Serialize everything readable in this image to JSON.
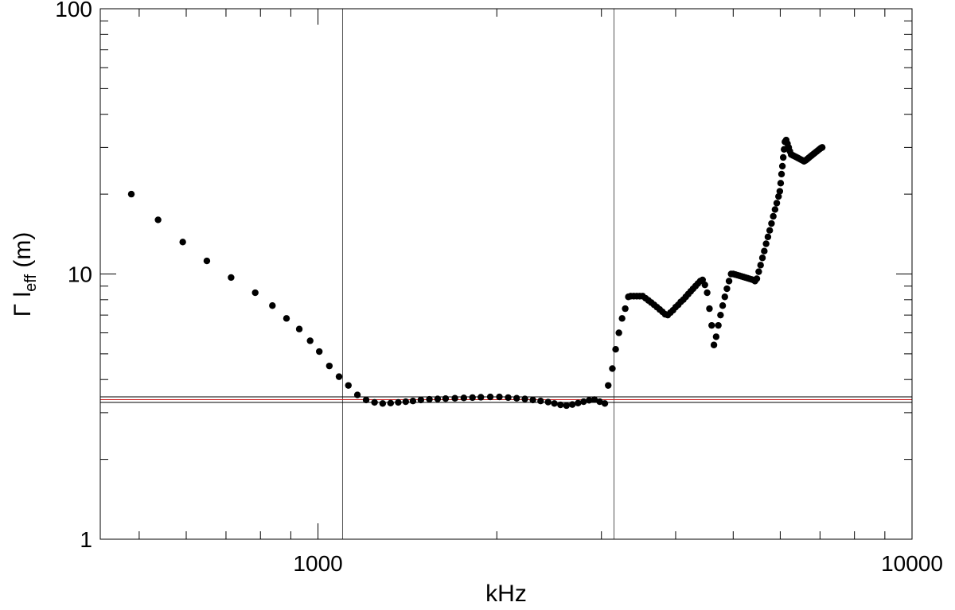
{
  "chart_data": {
    "type": "scatter",
    "title": "",
    "xlabel": "kHz",
    "ylabel": {
      "main": "Γ l",
      "sub": "eff",
      "unit": " (m)"
    },
    "x_scale": "log",
    "y_scale": "log",
    "xlim": [
      430,
      10000
    ],
    "ylim": [
      1,
      100
    ],
    "x_tick_labels": [
      {
        "value": 1000,
        "label": "1000"
      },
      {
        "value": 10000,
        "label": "10000"
      }
    ],
    "y_tick_labels": [
      {
        "value": 1,
        "label": "1"
      },
      {
        "value": 10,
        "label": "10"
      },
      {
        "value": 100,
        "label": "100"
      }
    ],
    "vertical_lines": [
      1100,
      3150
    ],
    "horizontal_lines": [
      {
        "y": 3.28,
        "color": "#000000"
      },
      {
        "y": 3.36,
        "color": "#cc2222"
      },
      {
        "y": 3.44,
        "color": "#000000"
      }
    ],
    "marker_color": "#000000",
    "series": [
      {
        "points": [
          [
            485,
            20.0
          ],
          [
            538,
            16.0
          ],
          [
            592,
            13.2
          ],
          [
            650,
            11.2
          ],
          [
            714,
            9.7
          ],
          [
            784,
            8.5
          ],
          [
            838,
            7.6
          ],
          [
            885,
            6.8
          ],
          [
            930,
            6.2
          ],
          [
            970,
            5.6
          ],
          [
            1005,
            5.1
          ],
          [
            1045,
            4.5
          ],
          [
            1085,
            4.1
          ],
          [
            1125,
            3.8
          ],
          [
            1165,
            3.5
          ],
          [
            1205,
            3.35
          ],
          [
            1245,
            3.28
          ],
          [
            1285,
            3.25
          ],
          [
            1325,
            3.26
          ],
          [
            1365,
            3.28
          ],
          [
            1405,
            3.3
          ],
          [
            1445,
            3.32
          ],
          [
            1490,
            3.35
          ],
          [
            1540,
            3.37
          ],
          [
            1590,
            3.38
          ],
          [
            1640,
            3.39
          ],
          [
            1700,
            3.4
          ],
          [
            1760,
            3.41
          ],
          [
            1820,
            3.42
          ],
          [
            1880,
            3.43
          ],
          [
            1950,
            3.44
          ],
          [
            2020,
            3.44
          ],
          [
            2090,
            3.42
          ],
          [
            2160,
            3.4
          ],
          [
            2230,
            3.38
          ],
          [
            2300,
            3.35
          ],
          [
            2370,
            3.32
          ],
          [
            2440,
            3.29
          ],
          [
            2500,
            3.25
          ],
          [
            2560,
            3.21
          ],
          [
            2620,
            3.19
          ],
          [
            2680,
            3.22
          ],
          [
            2740,
            3.26
          ],
          [
            2800,
            3.3
          ],
          [
            2860,
            3.34
          ],
          [
            2920,
            3.36
          ],
          [
            2980,
            3.3
          ],
          [
            3040,
            3.25
          ],
          [
            3080,
            3.8
          ],
          [
            3130,
            4.4
          ],
          [
            3170,
            5.2
          ],
          [
            3210,
            6.0
          ],
          [
            3250,
            6.8
          ],
          [
            3290,
            7.4
          ],
          [
            3330,
            8.2
          ],
          [
            3360,
            8.25
          ],
          [
            3400,
            8.25
          ],
          [
            3440,
            8.25
          ],
          [
            3480,
            8.25
          ],
          [
            3520,
            8.25
          ],
          [
            3560,
            8.1
          ],
          [
            3600,
            7.95
          ],
          [
            3640,
            7.8
          ],
          [
            3680,
            7.65
          ],
          [
            3720,
            7.5
          ],
          [
            3760,
            7.35
          ],
          [
            3800,
            7.2
          ],
          [
            3840,
            7.05
          ],
          [
            3880,
            7.0
          ],
          [
            3920,
            7.15
          ],
          [
            3960,
            7.3
          ],
          [
            4000,
            7.5
          ],
          [
            4040,
            7.65
          ],
          [
            4080,
            7.85
          ],
          [
            4120,
            8.0
          ],
          [
            4160,
            8.2
          ],
          [
            4200,
            8.4
          ],
          [
            4240,
            8.6
          ],
          [
            4280,
            8.8
          ],
          [
            4320,
            9.0
          ],
          [
            4360,
            9.2
          ],
          [
            4400,
            9.4
          ],
          [
            4440,
            9.5
          ],
          [
            4480,
            9.1
          ],
          [
            4520,
            8.5
          ],
          [
            4560,
            7.4
          ],
          [
            4600,
            6.4
          ],
          [
            4640,
            5.4
          ],
          [
            4680,
            5.8
          ],
          [
            4720,
            6.4
          ],
          [
            4760,
            7.0
          ],
          [
            4800,
            7.6
          ],
          [
            4840,
            8.2
          ],
          [
            4880,
            8.8
          ],
          [
            4920,
            9.4
          ],
          [
            4960,
            10.0
          ],
          [
            5000,
            10.0
          ],
          [
            5040,
            9.95
          ],
          [
            5080,
            9.9
          ],
          [
            5120,
            9.85
          ],
          [
            5160,
            9.8
          ],
          [
            5200,
            9.75
          ],
          [
            5240,
            9.7
          ],
          [
            5280,
            9.65
          ],
          [
            5320,
            9.6
          ],
          [
            5360,
            9.55
          ],
          [
            5400,
            9.5
          ],
          [
            5440,
            9.4
          ],
          [
            5480,
            9.6
          ],
          [
            5520,
            10.2
          ],
          [
            5560,
            10.8
          ],
          [
            5600,
            11.5
          ],
          [
            5640,
            12.2
          ],
          [
            5680,
            13.0
          ],
          [
            5720,
            13.8
          ],
          [
            5760,
            14.6
          ],
          [
            5800,
            15.5
          ],
          [
            5840,
            16.5
          ],
          [
            5880,
            17.5
          ],
          [
            5920,
            18.5
          ],
          [
            5960,
            19.6
          ],
          [
            5990,
            20.5
          ],
          [
            6010,
            22.0
          ],
          [
            6030,
            23.8
          ],
          [
            6050,
            25.5
          ],
          [
            6070,
            27.5
          ],
          [
            6090,
            29.5
          ],
          [
            6110,
            31.5
          ],
          [
            6140,
            32.0
          ],
          [
            6170,
            31.0
          ],
          [
            6200,
            30.0
          ],
          [
            6230,
            29.0
          ],
          [
            6260,
            28.2
          ],
          [
            6300,
            28.0
          ],
          [
            6340,
            27.8
          ],
          [
            6380,
            27.6
          ],
          [
            6420,
            27.4
          ],
          [
            6460,
            27.2
          ],
          [
            6500,
            27.0
          ],
          [
            6540,
            26.8
          ],
          [
            6580,
            26.6
          ],
          [
            6620,
            26.8
          ],
          [
            6660,
            27.1
          ],
          [
            6700,
            27.4
          ],
          [
            6740,
            27.7
          ],
          [
            6780,
            28.0
          ],
          [
            6820,
            28.3
          ],
          [
            6860,
            28.6
          ],
          [
            6900,
            28.9
          ],
          [
            6940,
            29.2
          ],
          [
            6980,
            29.5
          ],
          [
            7020,
            29.8
          ],
          [
            7060,
            30.0
          ]
        ]
      }
    ]
  }
}
